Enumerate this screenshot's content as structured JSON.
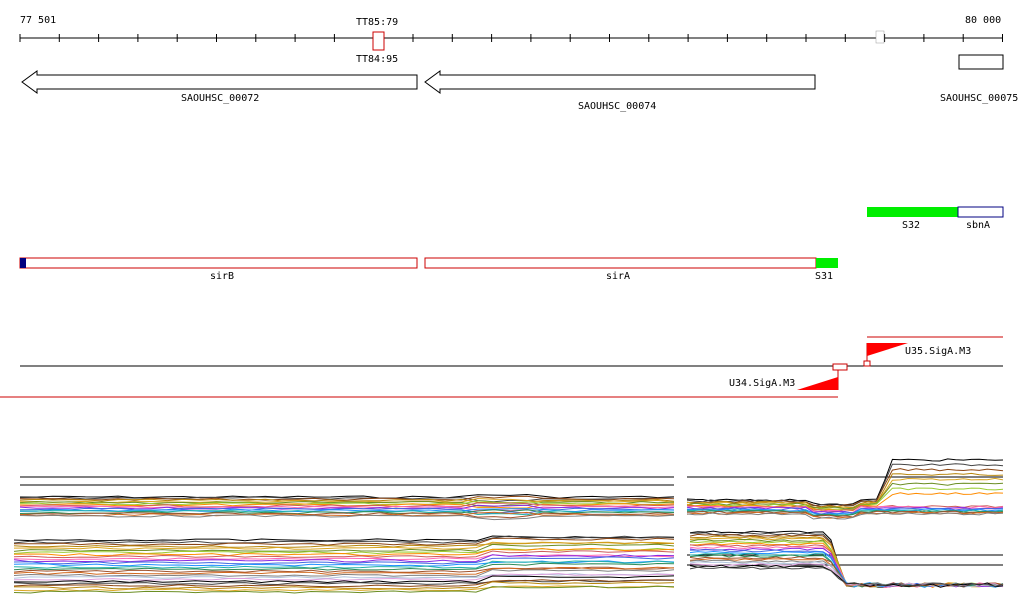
{
  "ruler": {
    "start_label": "77 501",
    "end_label": "80 000",
    "terminators": [
      {
        "label_top": "TT85:79",
        "label_bottom": "TT84:95"
      }
    ]
  },
  "genes": [
    {
      "name": "SAOUHSC_00072",
      "strand": "-"
    },
    {
      "name": "SAOUHSC_00074",
      "strand": "-"
    },
    {
      "name": "SAOUHSC_00075",
      "strand": "+"
    }
  ],
  "annotations_top": [
    {
      "name": "S32",
      "color": "#00ee00"
    },
    {
      "name": "sbnA",
      "color": "#ffffff"
    }
  ],
  "annotations_mid": [
    {
      "name": "sirB",
      "color": "#ffffff",
      "marker_color": "#000080"
    },
    {
      "name": "sirA",
      "color": "#ffffff"
    },
    {
      "name": "S31",
      "color": "#00ee00"
    }
  ],
  "promoters": [
    {
      "name": "U34.SigA.M3",
      "color": "#ff0000"
    },
    {
      "name": "U35.SigA.M3",
      "color": "#ff0000"
    }
  ],
  "colors": {
    "gene_outline": "#000000",
    "annotation_outline": "#cc0000",
    "sirB_outline": "#cc0000",
    "sbnA_outline": "#000080",
    "promoter": "#ff0000",
    "green": "#00ee00"
  },
  "expression_series_colors": [
    "#000000",
    "#444444",
    "#8b4513",
    "#b8860b",
    "#daa520",
    "#6b8e23",
    "#9acd32",
    "#ff8c00",
    "#cd5c5c",
    "#ff69b4",
    "#8a2be2",
    "#4169e1",
    "#1e90ff",
    "#20b2aa",
    "#2e8b57",
    "#a0522d",
    "#d2691e",
    "#808080",
    "#b0c4de",
    "#dda0dd"
  ]
}
